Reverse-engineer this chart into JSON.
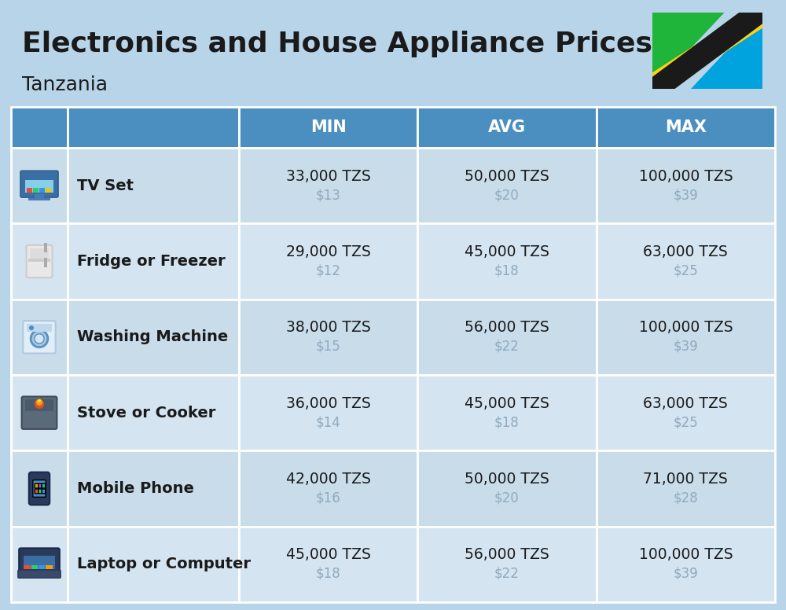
{
  "title": "Electronics and House Appliance Prices",
  "subtitle": "Tanzania",
  "background_color": "#b8d4e8",
  "header_color": "#4a8fc0",
  "header_text_color": "#ffffff",
  "row_bg_even": "#c8dcea",
  "row_bg_odd": "#d4e4f0",
  "border_color": "#ffffff",
  "text_color": "#1a1a1a",
  "subtext_color": "#90aabf",
  "columns": [
    "MIN",
    "AVG",
    "MAX"
  ],
  "rows": [
    {
      "label": "TV Set",
      "min_tzs": "33,000 TZS",
      "min_usd": "$13",
      "avg_tzs": "50,000 TZS",
      "avg_usd": "$20",
      "max_tzs": "100,000 TZS",
      "max_usd": "$39"
    },
    {
      "label": "Fridge or Freezer",
      "min_tzs": "29,000 TZS",
      "min_usd": "$12",
      "avg_tzs": "45,000 TZS",
      "avg_usd": "$18",
      "max_tzs": "63,000 TZS",
      "max_usd": "$25"
    },
    {
      "label": "Washing Machine",
      "min_tzs": "38,000 TZS",
      "min_usd": "$15",
      "avg_tzs": "56,000 TZS",
      "avg_usd": "$22",
      "max_tzs": "100,000 TZS",
      "max_usd": "$39"
    },
    {
      "label": "Stove or Cooker",
      "min_tzs": "36,000 TZS",
      "min_usd": "$14",
      "avg_tzs": "45,000 TZS",
      "avg_usd": "$18",
      "max_tzs": "63,000 TZS",
      "max_usd": "$25"
    },
    {
      "label": "Mobile Phone",
      "min_tzs": "42,000 TZS",
      "min_usd": "$16",
      "avg_tzs": "50,000 TZS",
      "avg_usd": "$20",
      "max_tzs": "71,000 TZS",
      "max_usd": "$28"
    },
    {
      "label": "Laptop or Computer",
      "min_tzs": "45,000 TZS",
      "min_usd": "$18",
      "avg_tzs": "56,000 TZS",
      "avg_usd": "$22",
      "max_tzs": "100,000 TZS",
      "max_usd": "$39"
    }
  ],
  "flag_colors": {
    "green": "#1eb53a",
    "yellow": "#fcd116",
    "blue": "#00a3dd",
    "black": "#1a1a1a"
  },
  "icon_bg_colors": [
    "#3a9fd5",
    "#e8e8e8",
    "#5ab8e0",
    "#5ab0d0",
    "#5090c0",
    "#e8c850"
  ]
}
